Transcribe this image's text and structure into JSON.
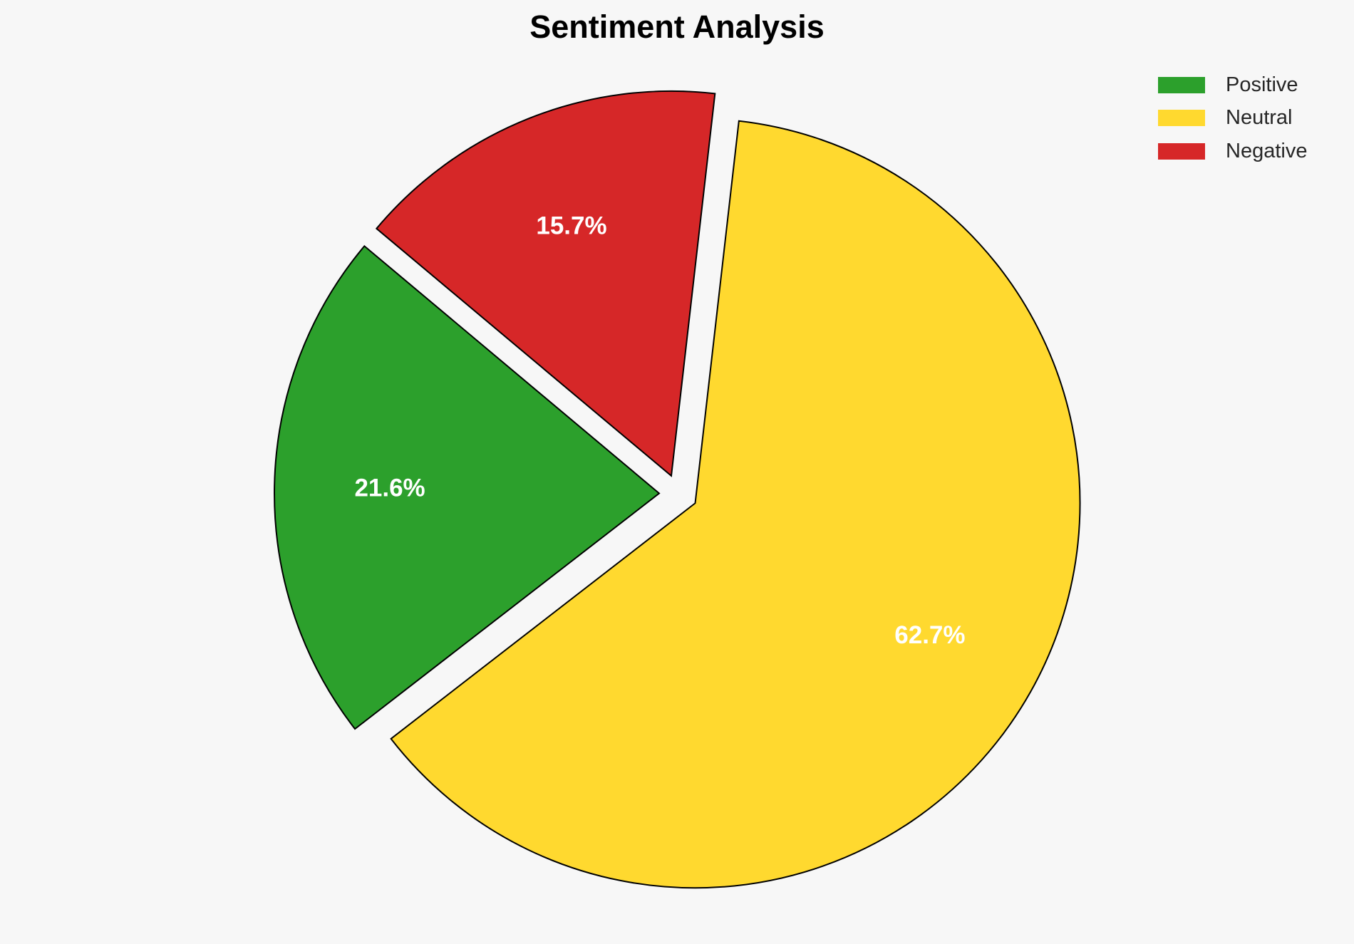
{
  "chart_data": {
    "type": "pie",
    "title": "Sentiment Analysis",
    "categories": [
      "Positive",
      "Neutral",
      "Negative"
    ],
    "values": [
      21.6,
      62.7,
      15.7
    ],
    "labels": [
      "21.6%",
      "62.7%",
      "15.7%"
    ],
    "colors": [
      "#2ca02c",
      "#ffd92f",
      "#d62728"
    ],
    "startangle": 140,
    "explode": [
      0.05,
      0.05,
      0.05
    ],
    "edgecolor": "#000000",
    "label_color": "#ffffff",
    "legend_placement": "top-right"
  }
}
